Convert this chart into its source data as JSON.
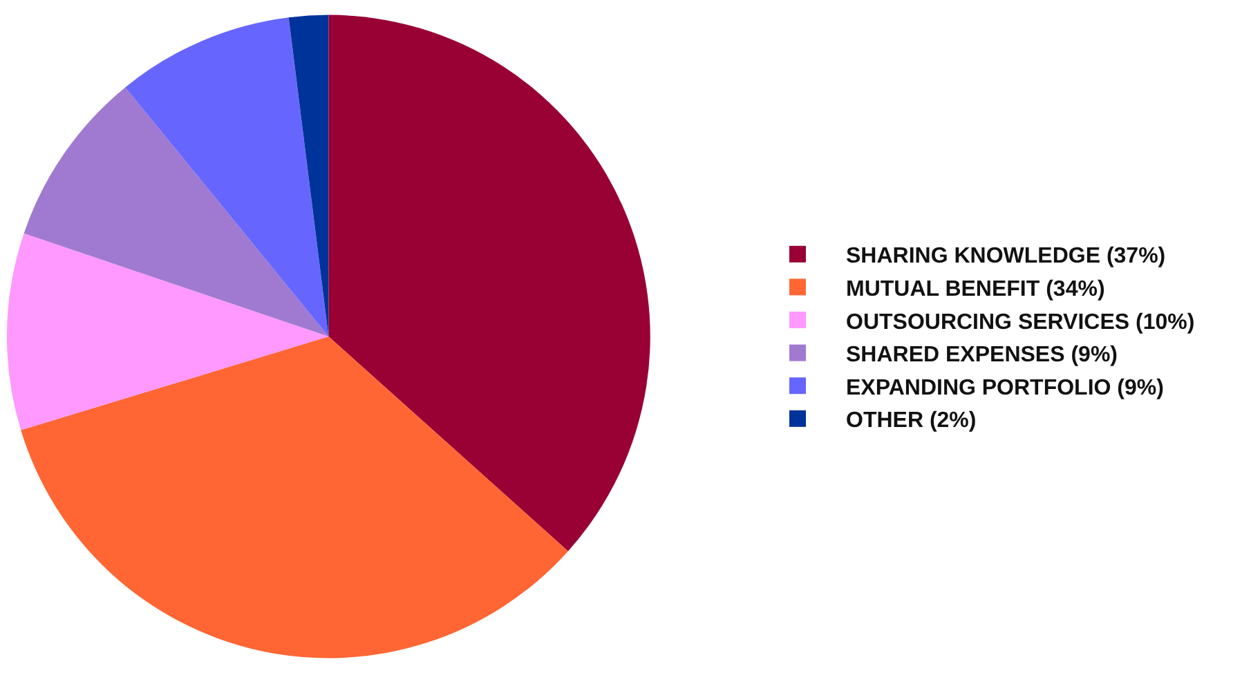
{
  "chart_data": {
    "type": "pie",
    "categories": [
      "SHARING KNOWLEDGE (37%)",
      "MUTUAL BENEFIT (34%)",
      "OUTSOURCING SERVICES (10%)",
      "SHARED EXPENSES (9%)",
      "EXPANDING PORTFOLIO (9%)",
      "OTHER (2%)"
    ],
    "values": [
      37,
      34,
      10,
      9,
      9,
      2
    ],
    "colors": [
      "#990033",
      "#ff6633",
      "#ff99ff",
      "#a07ad0",
      "#6666ff",
      "#003399"
    ],
    "legend": "right"
  }
}
